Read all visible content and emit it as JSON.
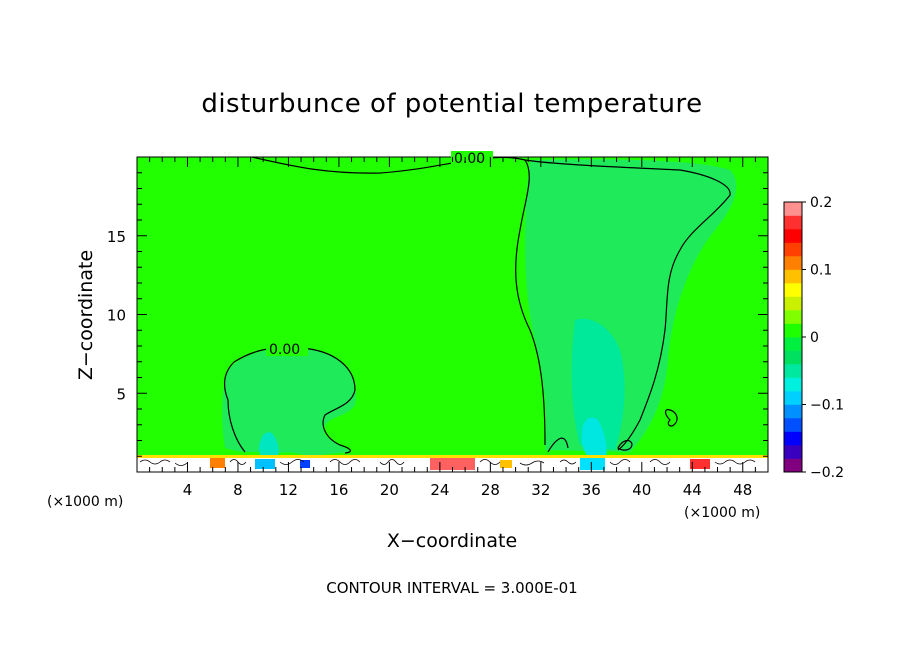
{
  "chart_data": {
    "type": "heatmap",
    "title": "disturbunce of potential temperature",
    "xlabel": "X−coordinate",
    "ylabel": "Z−coordinate",
    "x_unit_left": "(×1000 m)",
    "x_unit_right": "(×1000 m)",
    "xlim": [
      0,
      50
    ],
    "ylim": [
      0,
      20
    ],
    "x_ticks": [
      4,
      8,
      12,
      16,
      20,
      24,
      28,
      32,
      36,
      40,
      44,
      48
    ],
    "x_tick_labels": [
      "4",
      "8",
      "12",
      "16",
      "20",
      "24",
      "28",
      "32",
      "36",
      "40",
      "44",
      "48"
    ],
    "y_ticks": [
      5,
      10,
      15
    ],
    "y_tick_labels": [
      "5",
      "10",
      "15"
    ],
    "contour_label": "0.00",
    "footer": "CONTOUR INTERVAL = 3.000E-01",
    "colorbar": {
      "range": [
        -0.2,
        0.2
      ],
      "tick_labels": [
        "0.2",
        "0.1",
        "0",
        "−0.1",
        "−0.2"
      ],
      "tick_values": [
        0.2,
        0.1,
        0,
        -0.1,
        -0.2
      ],
      "colors": [
        "#800080",
        "#3a00c0",
        "#0000ff",
        "#0050ff",
        "#0090ff",
        "#00d0ff",
        "#00f0e0",
        "#00e8a0",
        "#00e060",
        "#00f040",
        "#20ff00",
        "#80ff00",
        "#c8f000",
        "#ffff00",
        "#ffc000",
        "#ff8000",
        "#ff4000",
        "#ff0000",
        "#ff3030",
        "#ff9090"
      ]
    }
  }
}
